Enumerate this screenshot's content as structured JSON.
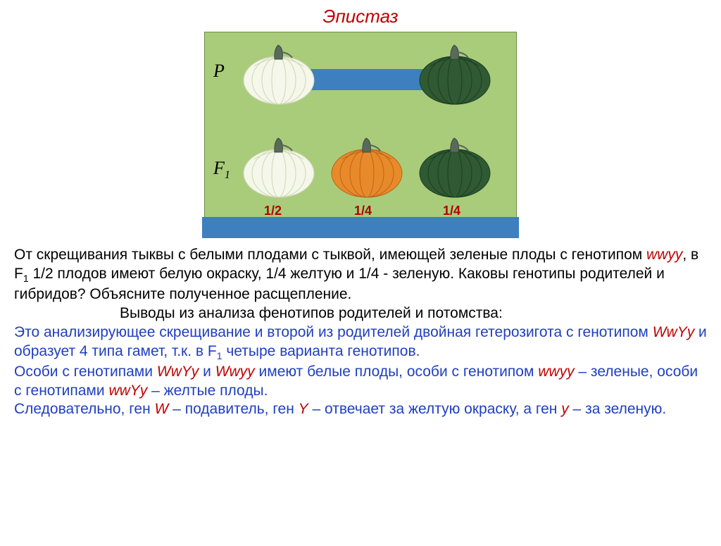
{
  "title": "Эпистаз",
  "diagram": {
    "bg": "#a9cc7a",
    "row_P_label": "P",
    "row_F1_label": "F",
    "row_F1_sub": "1",
    "fractions": [
      "1/2",
      "1/4",
      "1/4"
    ],
    "fraction_color": "#b00000",
    "bar_color": "#3d7fbf",
    "pumpkins": {
      "P_left": {
        "body": "#f4f7ea",
        "shade": "#cfd6b6"
      },
      "P_right": {
        "body": "#2f5a33",
        "shade": "#1e3d22"
      },
      "F1_1": {
        "body": "#f4f7ea",
        "shade": "#cfd6b6"
      },
      "F1_2": {
        "body": "#e88a2a",
        "shade": "#b8651a"
      },
      "F1_3": {
        "body": "#2f5a33",
        "shade": "#1e3d22"
      }
    },
    "stem_color": "#5a6a5a"
  },
  "text": {
    "p1_a": "От скрещивания тыквы с белыми плодами с тыквой, имеющей зеленые плоды с генотипом ",
    "g_wwyy": "wwyy",
    "p1_b": ", в F",
    "p1_sub": "1",
    "p1_c": " 1/2 плодов имеют белую окраску, 1/4  желтую и 1/4  - зеленую. Каковы генотипы родителей и гибридов?  Объясните полученное расщепление.",
    "p2": "Выводы из анализа фенотипов родителей и потомства:",
    "p3_a": "Это анализирующее скрещивание и второй из родителей двойная гетерозигота с генотипом ",
    "g_WwYy": "WwYy",
    "p3_b": " и образует 4 типа гамет, т.к. в F",
    "p3_sub": "1",
    "p3_c": " четыре варианта генотипов.",
    "p4_a": "Особи с генотипами ",
    "p4_b": " и ",
    "g_Wwyy": "Wwyy",
    "p4_c": " имеют белые плоды, особи с генотипом ",
    "p4_d": " – зеленые, особи с генотипами ",
    "g_wwYy": "wwYy",
    "p4_e": " – желтые плоды.",
    "p5_a": "Следовательно, ген ",
    "g_W": "W",
    "p5_b": " – подавитель, ген ",
    "g_Y": "Y",
    "p5_c": " – отвечает за желтую окраску, а ген ",
    "g_y": "y",
    "p5_d": " – за зеленую."
  }
}
